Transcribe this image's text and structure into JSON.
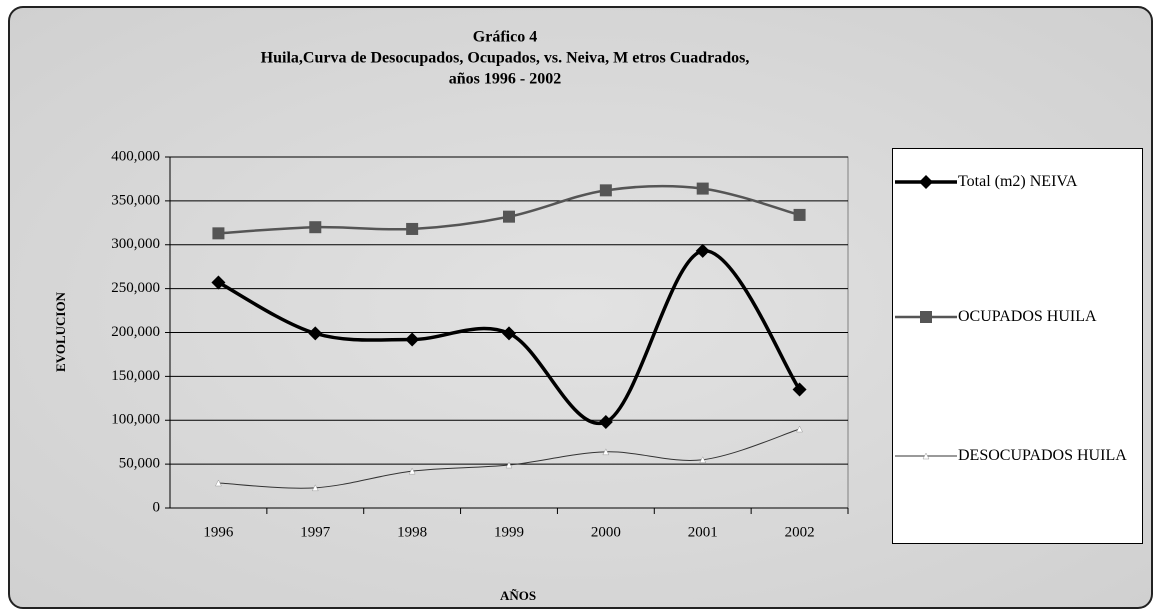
{
  "chart_data": {
    "type": "line",
    "title": [
      "Gráfico 4",
      "Huila,Curva  de Desocupados, Ocupados,  vs. Neiva, M etros Cuadrados,",
      "años  1996 - 2002"
    ],
    "x_label": "AÑOS",
    "y_label": "EVOLUCION",
    "categories": [
      "1996",
      "1997",
      "1998",
      "1999",
      "2000",
      "2001",
      "2002"
    ],
    "series": [
      {
        "name": "Total (m2) NEIVA",
        "color": "#000000",
        "values": [
          257000,
          199000,
          192000,
          199000,
          98000,
          293000,
          135000
        ]
      },
      {
        "name": "OCUPADOS HUILA",
        "color": "#555555",
        "values": [
          313000,
          320000,
          318000,
          332000,
          362000,
          364000,
          334000
        ]
      },
      {
        "name": "DESOCUPADOS HUILA",
        "color": "#333333",
        "values": [
          28500,
          23000,
          42000,
          49000,
          64000,
          55000,
          90000
        ]
      }
    ],
    "ylim": [
      0,
      400000
    ],
    "yticks": [
      0,
      {
        "value": 50000,
        "label": "50,000"
      },
      {
        "value": 100000,
        "label": "100,000"
      },
      {
        "value": 150000,
        "label": "150,000"
      },
      {
        "value": 200000,
        "label": "200,000"
      },
      {
        "value": 250000,
        "label": "250,000"
      },
      {
        "value": 300000,
        "label": "300,000"
      },
      {
        "value": 350000,
        "label": "350,000"
      },
      {
        "value": 400000,
        "label": "400,000"
      }
    ],
    "grid": true,
    "legend": "right"
  }
}
